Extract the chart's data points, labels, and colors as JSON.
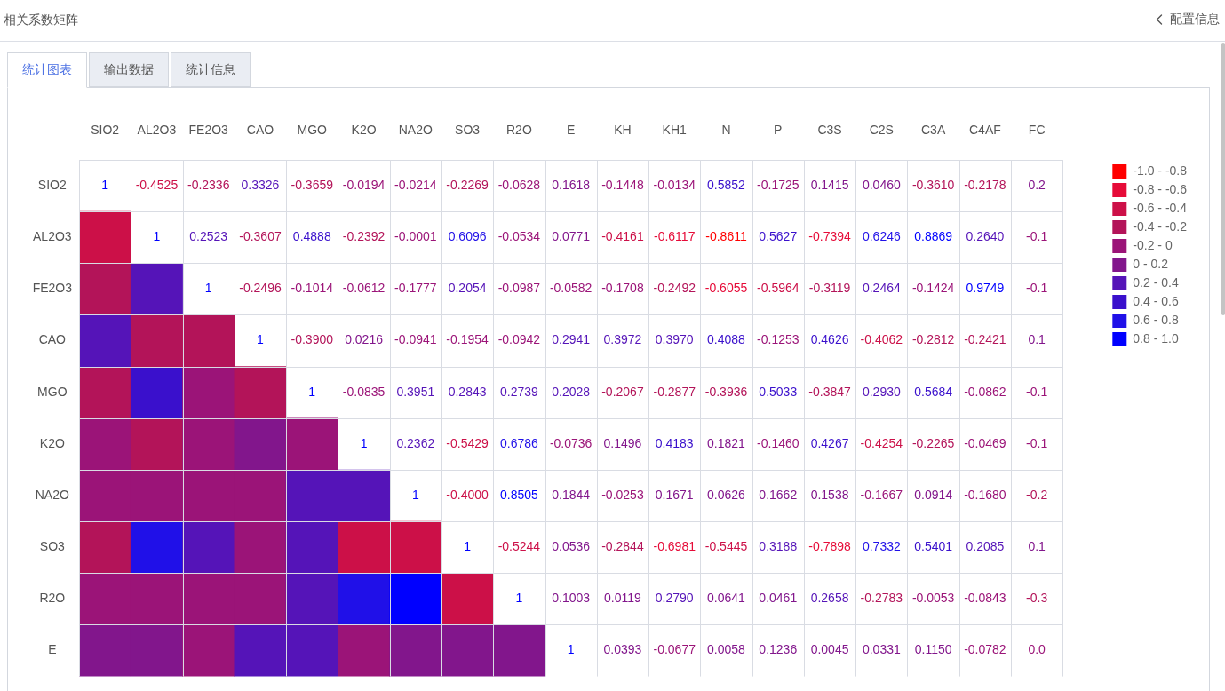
{
  "chart_data": {
    "type": "heatmap",
    "title": "相关系数矩阵",
    "annotations": [
      "配置信息",
      "统计图表",
      "输出数据",
      "统计信息"
    ],
    "categories": [
      "SIO2",
      "AL2O3",
      "FE2O3",
      "CAO",
      "MGO",
      "K2O",
      "NA2O",
      "SO3",
      "R2O",
      "E",
      "KH",
      "KH1",
      "N",
      "P",
      "C3S",
      "C2S",
      "C3A",
      "C4AF",
      "FC"
    ],
    "y_categories": [
      "SIO2",
      "AL2O3",
      "FE2O3",
      "CAO",
      "MGO",
      "K2O",
      "NA2O",
      "SO3",
      "R2O",
      "E"
    ],
    "cells": [
      [
        null,
        null,
        null,
        null,
        null,
        null,
        null,
        null,
        null,
        null,
        null,
        null,
        null,
        null,
        null,
        null,
        null,
        null,
        null
      ],
      [
        -0.4525,
        null,
        null,
        null,
        null,
        null,
        null,
        null,
        null,
        null,
        null,
        null,
        null,
        null,
        null,
        null,
        null,
        null,
        null
      ],
      [
        -0.2336,
        0.2523,
        null,
        null,
        null,
        null,
        null,
        null,
        null,
        null,
        null,
        null,
        null,
        null,
        null,
        null,
        null,
        null,
        null
      ],
      [
        0.3326,
        -0.3607,
        -0.2496,
        null,
        null,
        null,
        null,
        null,
        null,
        null,
        null,
        null,
        null,
        null,
        null,
        null,
        null,
        null,
        null
      ],
      [
        -0.3659,
        0.4888,
        -0.1014,
        -0.39,
        null,
        null,
        null,
        null,
        null,
        null,
        null,
        null,
        null,
        null,
        null,
        null,
        null,
        null,
        null
      ],
      [
        -0.0194,
        -0.2392,
        -0.0612,
        0.0216,
        -0.0835,
        null,
        null,
        null,
        null,
        null,
        null,
        null,
        null,
        null,
        null,
        null,
        null,
        null,
        null
      ],
      [
        -0.0214,
        -0.0001,
        -0.1777,
        -0.0941,
        0.3951,
        0.2362,
        null,
        null,
        null,
        null,
        null,
        null,
        null,
        null,
        null,
        null,
        null,
        null,
        null
      ],
      [
        -0.2269,
        0.6096,
        0.2054,
        -0.1954,
        0.2843,
        -0.5429,
        -0.4,
        null,
        null,
        null,
        null,
        null,
        null,
        null,
        null,
        null,
        null,
        null,
        null
      ],
      [
        -0.0628,
        -0.0534,
        -0.0987,
        -0.0942,
        0.2739,
        0.6786,
        0.8505,
        -0.5244,
        null,
        null,
        null,
        null,
        null,
        null,
        null,
        null,
        null,
        null,
        null
      ],
      [
        0.1618,
        0.0771,
        -0.0582,
        0.2941,
        0.2028,
        -0.0736,
        0.1844,
        0.0536,
        0.1003,
        null,
        null,
        null,
        null,
        null,
        null,
        null,
        null,
        null,
        null
      ]
    ],
    "cell_labels": [
      [
        "1",
        "-0.4525",
        "-0.2336",
        "0.3326",
        "-0.3659",
        "-0.0194",
        "-0.0214",
        "-0.2269",
        "-0.0628",
        "0.1618",
        "-0.1448",
        "-0.0134",
        "0.5852",
        "-0.1725",
        "0.1415",
        "0.0460",
        "-0.3610",
        "-0.2178",
        "0.2"
      ],
      [
        null,
        "1",
        "0.2523",
        "-0.3607",
        "0.4888",
        "-0.2392",
        "-0.0001",
        "0.6096",
        "-0.0534",
        "0.0771",
        "-0.4161",
        "-0.6117",
        "-0.8611",
        "0.5627",
        "-0.7394",
        "0.6246",
        "0.8869",
        "0.2640",
        "-0.1"
      ],
      [
        null,
        null,
        "1",
        "-0.2496",
        "-0.1014",
        "-0.0612",
        "-0.1777",
        "0.2054",
        "-0.0987",
        "-0.0582",
        "-0.1708",
        "-0.2492",
        "-0.6055",
        "-0.5964",
        "-0.3119",
        "0.2464",
        "-0.1424",
        "0.9749",
        "-0.1"
      ],
      [
        null,
        null,
        null,
        "1",
        "-0.3900",
        "0.0216",
        "-0.0941",
        "-0.1954",
        "-0.0942",
        "0.2941",
        "0.3972",
        "0.3970",
        "0.4088",
        "-0.1253",
        "0.4626",
        "-0.4062",
        "-0.2812",
        "-0.2421",
        "0.1"
      ],
      [
        null,
        null,
        null,
        null,
        "1",
        "-0.0835",
        "0.3951",
        "0.2843",
        "0.2739",
        "0.2028",
        "-0.2067",
        "-0.2877",
        "-0.3936",
        "0.5033",
        "-0.3847",
        "0.2930",
        "0.5684",
        "-0.0862",
        "-0.1"
      ],
      [
        null,
        null,
        null,
        null,
        null,
        "1",
        "0.2362",
        "-0.5429",
        "0.6786",
        "-0.0736",
        "0.1496",
        "0.4183",
        "0.1821",
        "-0.1460",
        "0.4267",
        "-0.4254",
        "-0.2265",
        "-0.0469",
        "-0.1"
      ],
      [
        null,
        null,
        null,
        null,
        null,
        null,
        "1",
        "-0.4000",
        "0.8505",
        "0.1844",
        "-0.0253",
        "0.1671",
        "0.0626",
        "0.1662",
        "0.1538",
        "-0.1667",
        "0.0914",
        "-0.1680",
        "-0.2"
      ],
      [
        null,
        null,
        null,
        null,
        null,
        null,
        null,
        "1",
        "-0.5244",
        "0.0536",
        "-0.2844",
        "-0.6981",
        "-0.5445",
        "0.3188",
        "-0.7898",
        "0.7332",
        "0.5401",
        "0.2085",
        "0.1"
      ],
      [
        null,
        null,
        null,
        null,
        null,
        null,
        null,
        null,
        "1",
        "0.1003",
        "0.0119",
        "0.2790",
        "0.0641",
        "0.0461",
        "0.2658",
        "-0.2783",
        "-0.0053",
        "-0.0843",
        "-0.3"
      ],
      [
        null,
        null,
        null,
        null,
        null,
        null,
        null,
        null,
        null,
        "1",
        "0.0393",
        "-0.0677",
        "0.0058",
        "0.1236",
        "0.0045",
        "0.0331",
        "0.1150",
        "-0.0782",
        "0.0"
      ]
    ],
    "cticks": [
      {
        "value": -0.9,
        "label": "-1.0 - -0.8"
      },
      {
        "value": -0.7,
        "label": "-0.8 - -0.6"
      },
      {
        "value": -0.5,
        "label": "-0.6 - -0.4"
      },
      {
        "value": -0.3,
        "label": "-0.4 - -0.2"
      },
      {
        "value": -0.1,
        "label": "-0.2 - 0"
      },
      {
        "value": 0.1,
        "label": "0 - 0.2"
      },
      {
        "value": 0.3,
        "label": "0.2 - 0.4"
      },
      {
        "value": 0.5,
        "label": "0.4 - 0.6"
      },
      {
        "value": 0.7,
        "label": "0.6 - 0.8"
      },
      {
        "value": 0.9,
        "label": "0.8 - 1.0"
      }
    ],
    "colors": [
      "#ff0000",
      "#e60b38",
      "#cc1048",
      "#b31459",
      "#9b1478",
      "#82168c",
      "#5514b8",
      "#3a10cc",
      "#2010e8",
      "#0000ff"
    ],
    "grid": true
  }
}
